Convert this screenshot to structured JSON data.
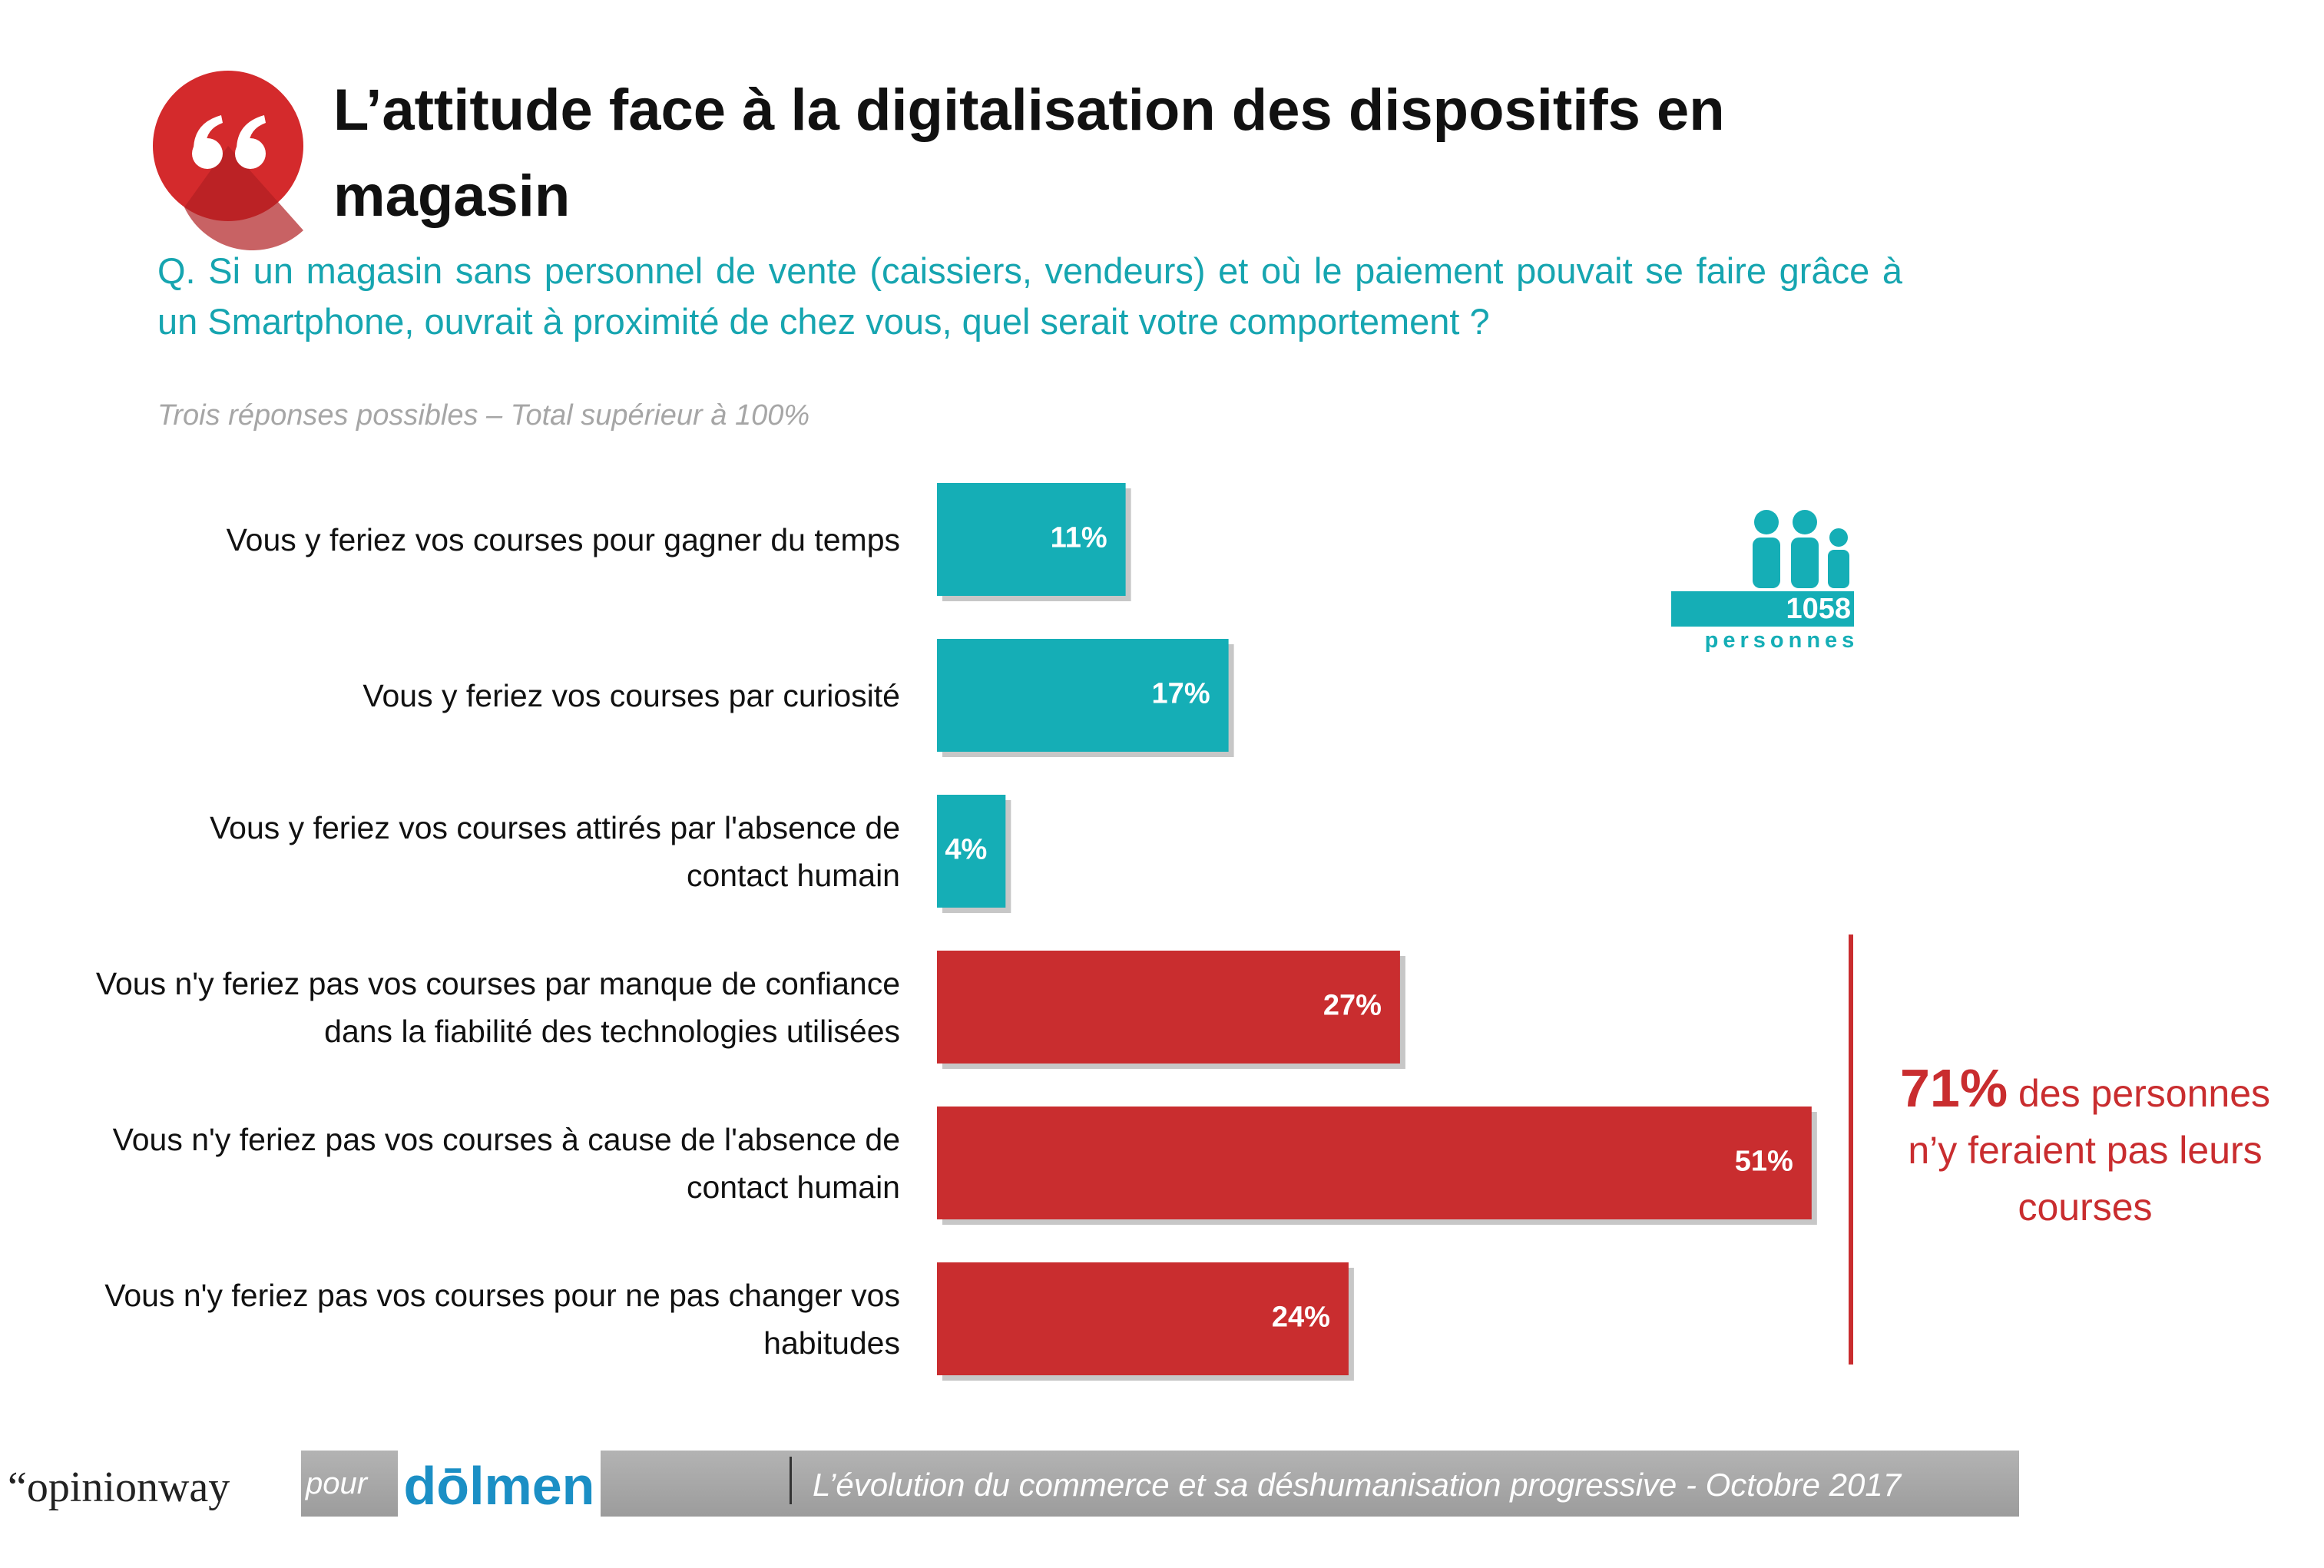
{
  "header": {
    "title": "L’attitude face à la digitalisation des dispositifs en magasin"
  },
  "chart_data": {
    "type": "bar",
    "orientation": "horizontal",
    "subtitle": "Q. Si un magasin sans personnel de vente (caissiers, vendeurs) et où le paiement pouvait se faire grâce à un Smartphone, ouvrait à proximité de chez vous, quel serait votre comportement ?",
    "note": "Trois réponses possibles – Total supérieur à 100%",
    "categories": [
      "Vous y feriez vos courses pour gagner du temps",
      "Vous y feriez vos courses par curiosité",
      "Vous y feriez vos courses attirés par l'absence de contact humain",
      "Vous n'y feriez pas vos courses par manque de confiance dans la fiabilité des technologies utilisées",
      "Vous n'y feriez pas vos courses à cause de l'absence de contact humain",
      "Vous n'y feriez pas vos courses pour ne pas changer vos habitudes"
    ],
    "values": [
      11,
      17,
      4,
      27,
      51,
      24
    ],
    "value_labels": [
      "11%",
      "17%",
      "4%",
      "27%",
      "51%",
      "24%"
    ],
    "colors": [
      "#15aeb6",
      "#15aeb6",
      "#15aeb6",
      "#c92d2f",
      "#c92d2f",
      "#c92d2f"
    ],
    "annotation": {
      "highlight": "71%",
      "text": "des personnes n’y feraient pas leurs courses"
    }
  },
  "badge": {
    "count": "1058",
    "label": "personnes"
  },
  "footer": {
    "source": "“opinionway",
    "connector": "pour",
    "client": "dōlmen",
    "caption": "L’évolution du commerce et sa déshumanisation progressive - Octobre 2017"
  }
}
